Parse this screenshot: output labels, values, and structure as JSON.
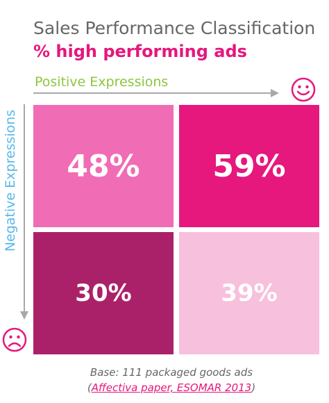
{
  "chart_data": {
    "type": "heatmap",
    "title": "Sales Performance Classification",
    "subtitle": "% high performing ads",
    "xlabel": "Positive Expressions",
    "ylabel": "Negative Expressions",
    "cells": [
      {
        "value": 48,
        "label": "48%"
      },
      {
        "value": 59,
        "label": "59%"
      },
      {
        "value": 30,
        "label": "30%"
      },
      {
        "value": 39,
        "label": "39%"
      }
    ],
    "icons": {
      "x_end": "smiley-face-icon",
      "y_end": "sad-face-icon"
    },
    "colors": {
      "top_left": "#f06cb4",
      "top_right": "#e6177d",
      "bottom_left": "#ab2169",
      "bottom_right": "#f7c0dc",
      "title": "#666666",
      "subtitle": "#e6177d",
      "x_label": "#8cc63f",
      "y_label": "#5bb8e8"
    }
  },
  "footer": {
    "base": "Base: 111 packaged goods ads",
    "open_paren": "(",
    "link_text": "Affectiva paper, ESOMAR 2013",
    "close_paren": ")"
  }
}
